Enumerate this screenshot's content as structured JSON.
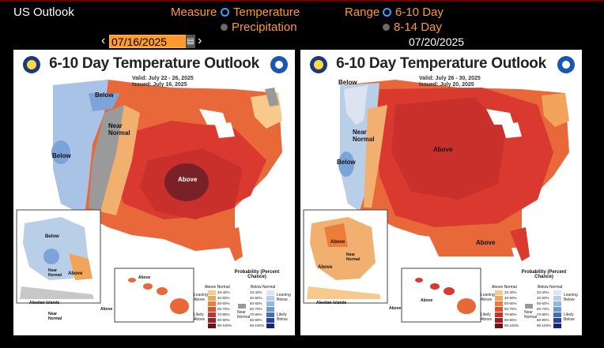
{
  "app": {
    "title": "US Outlook"
  },
  "controls": {
    "measure_label": "Measure",
    "measure_options": [
      "Temperature",
      "Precipitation"
    ],
    "measure_selected": "Temperature",
    "range_label": "Range",
    "range_options": [
      "6-10 Day",
      "8-14 Day"
    ],
    "range_selected": "6-10 Day"
  },
  "dates": {
    "left_date": "07/16/2025",
    "right_date": "07/20/2025",
    "prev_arrow": "‹",
    "next_arrow": "›",
    "calendar_glyph": "▤"
  },
  "maps": [
    {
      "title": "6-10 Day Temperature Outlook",
      "valid": "Valid:  July 22 - 26, 2025",
      "issued": "Issued:  July 16, 2025",
      "labels": [
        "Below",
        "Near Normal",
        "Below",
        "Above"
      ],
      "inset_labels": [
        "Below",
        "Near Normal",
        "Above",
        "Aleutian Islands",
        "Near Normal",
        "Above",
        "Above"
      ]
    },
    {
      "title": "6-10 Day Temperature Outlook",
      "valid": "Valid:  July 26 - 30, 2025",
      "issued": "Issued:  July 20, 2025",
      "labels": [
        "Below",
        "Near Normal",
        "Below",
        "Above",
        "Above"
      ],
      "inset_labels": [
        "Above",
        "Near Normal",
        "Above",
        "Aleutian Islands",
        "Above",
        "Above"
      ]
    }
  ],
  "legend": {
    "title": "Probability (Percent Chance)",
    "above_head": "Above Normal",
    "below_head": "Below Normal",
    "above_ranges": [
      "33-40%",
      "40-50%",
      "50-60%",
      "60-70%",
      "70-80%",
      "80-90%",
      "90-100%"
    ],
    "below_ranges": [
      "33-40%",
      "40-50%",
      "50-60%",
      "60-70%",
      "70-80%",
      "80-90%",
      "90-100%"
    ],
    "leaning_above": "Leaning Above",
    "likely_above": "Likely Above",
    "leaning_below": "Leaning Below",
    "likely_below": "Likely Below",
    "near_normal": "Near Normal",
    "above_colors": [
      "#f7c98a",
      "#f2a45a",
      "#ec7c3a",
      "#e0502e",
      "#c9302c",
      "#a01c22",
      "#6e1018"
    ],
    "below_colors": [
      "#dce4f2",
      "#b9cfe8",
      "#94b7e0",
      "#6b9bd4",
      "#3f6fbd",
      "#25429a",
      "#1a2470"
    ],
    "near_color": "#999999"
  }
}
